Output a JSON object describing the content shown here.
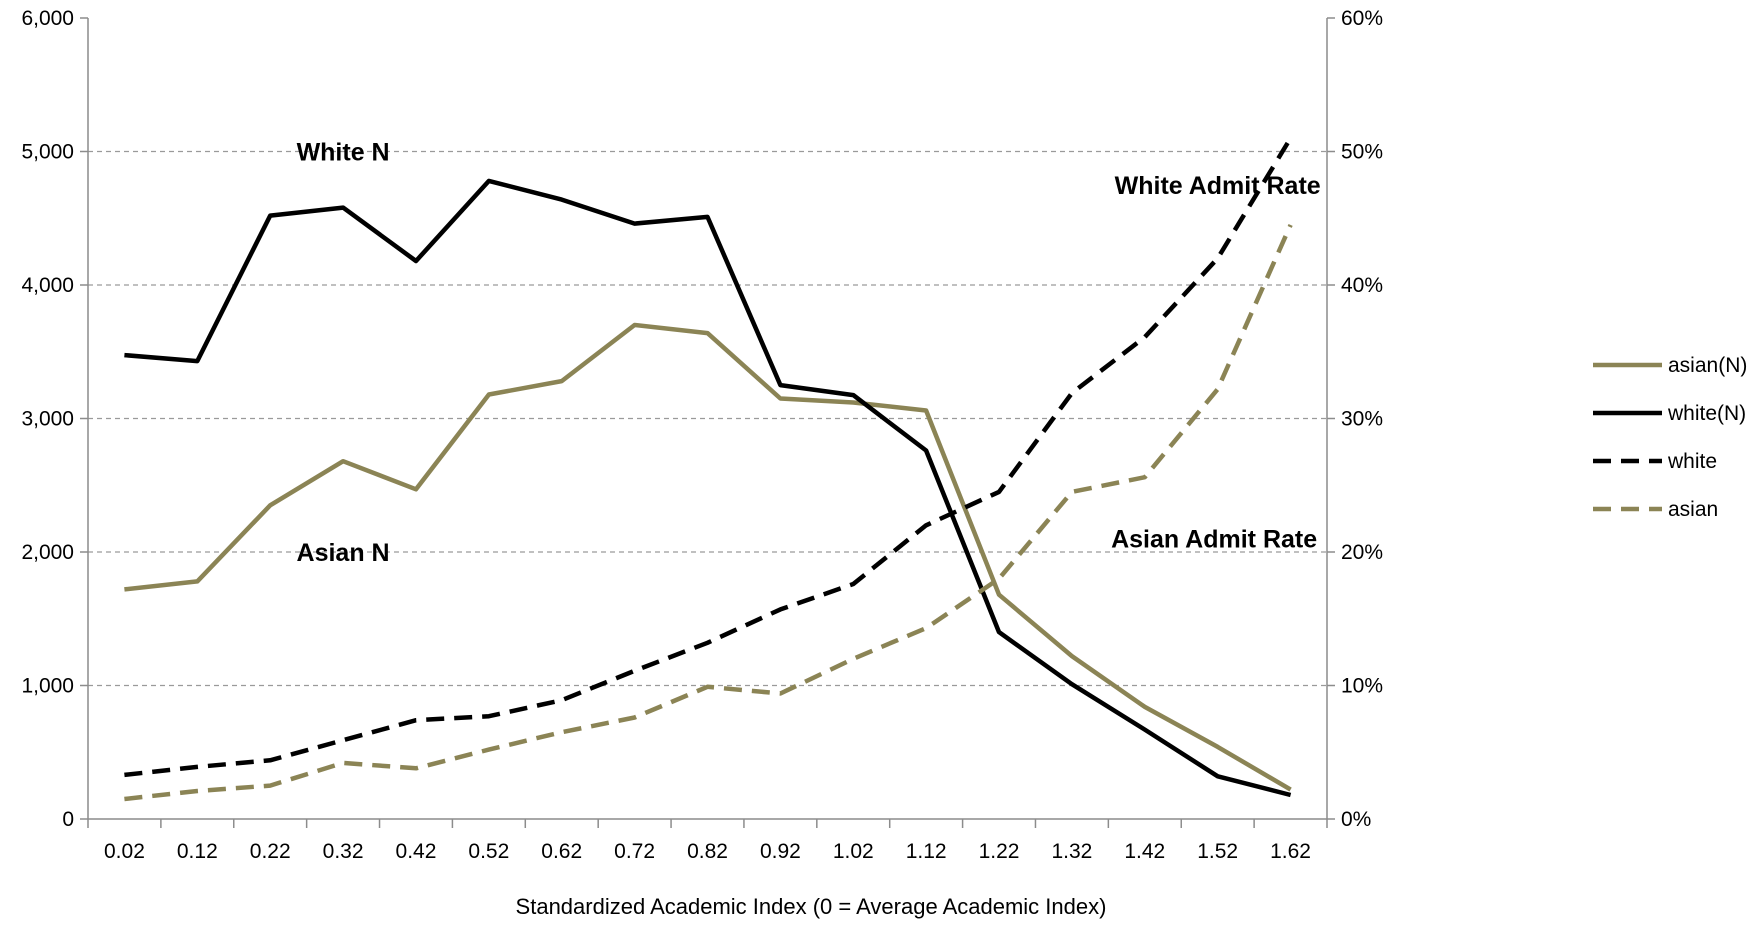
{
  "chart_data": {
    "type": "line",
    "xlabel": "Standardized Academic Index (0 = Average Academic Index)",
    "categories": [
      "0.02",
      "0.12",
      "0.22",
      "0.32",
      "0.42",
      "0.52",
      "0.62",
      "0.72",
      "0.82",
      "0.92",
      "1.02",
      "1.12",
      "1.22",
      "1.32",
      "1.42",
      "1.52",
      "1.62"
    ],
    "y_left": {
      "ylim": [
        0,
        6000
      ],
      "ticks": [
        0,
        1000,
        2000,
        3000,
        4000,
        5000,
        6000
      ],
      "tick_labels": [
        "0",
        "1,000",
        "2,000",
        "3,000",
        "4,000",
        "5,000",
        "6,000"
      ]
    },
    "y_right": {
      "ylim": [
        0,
        60
      ],
      "ticks": [
        0,
        10,
        20,
        30,
        40,
        50,
        60
      ],
      "tick_labels": [
        "0%",
        "10%",
        "20%",
        "30%",
        "40%",
        "50%",
        "60%"
      ]
    },
    "grid": "horizontal dashed",
    "legend_position": "right",
    "series": [
      {
        "name": "asian(N)",
        "axis": "left",
        "style": "solid",
        "color": "#8b8455",
        "values": [
          1720,
          1780,
          2350,
          2680,
          2470,
          3180,
          3280,
          3700,
          3640,
          3150,
          3120,
          3060,
          1680,
          1220,
          840,
          540,
          220
        ]
      },
      {
        "name": "white(N)",
        "axis": "left",
        "style": "solid",
        "color": "#000000",
        "values": [
          3475,
          3430,
          4520,
          4580,
          4180,
          4780,
          4640,
          4460,
          4510,
          3250,
          3175,
          2760,
          1400,
          1010,
          670,
          320,
          180
        ]
      },
      {
        "name": "white",
        "axis": "right",
        "style": "dashed",
        "color": "#000000",
        "values": [
          3.3,
          3.9,
          4.4,
          5.9,
          7.4,
          7.7,
          8.9,
          11.1,
          13.2,
          15.7,
          17.6,
          22.0,
          24.5,
          31.9,
          36.1,
          42.0,
          51.0
        ]
      },
      {
        "name": "asian",
        "axis": "right",
        "style": "dashed",
        "color": "#8b8455",
        "values": [
          1.5,
          2.1,
          2.5,
          4.2,
          3.8,
          5.2,
          6.5,
          7.6,
          9.9,
          9.4,
          12.0,
          14.3,
          18.0,
          24.5,
          25.6,
          32.2,
          44.5
        ]
      }
    ],
    "annotations": [
      {
        "text": "White N",
        "x": "0.32",
        "y": 5000,
        "axis": "left"
      },
      {
        "text": "Asian N",
        "x": "0.32",
        "y": 2000,
        "axis": "left"
      },
      {
        "text": "White Admit Rate",
        "x": "1.52",
        "y": 47.5,
        "axis": "right"
      },
      {
        "text": "Asian Admit Rate",
        "x": "1.57",
        "y": 21.0,
        "axis": "right"
      }
    ]
  }
}
